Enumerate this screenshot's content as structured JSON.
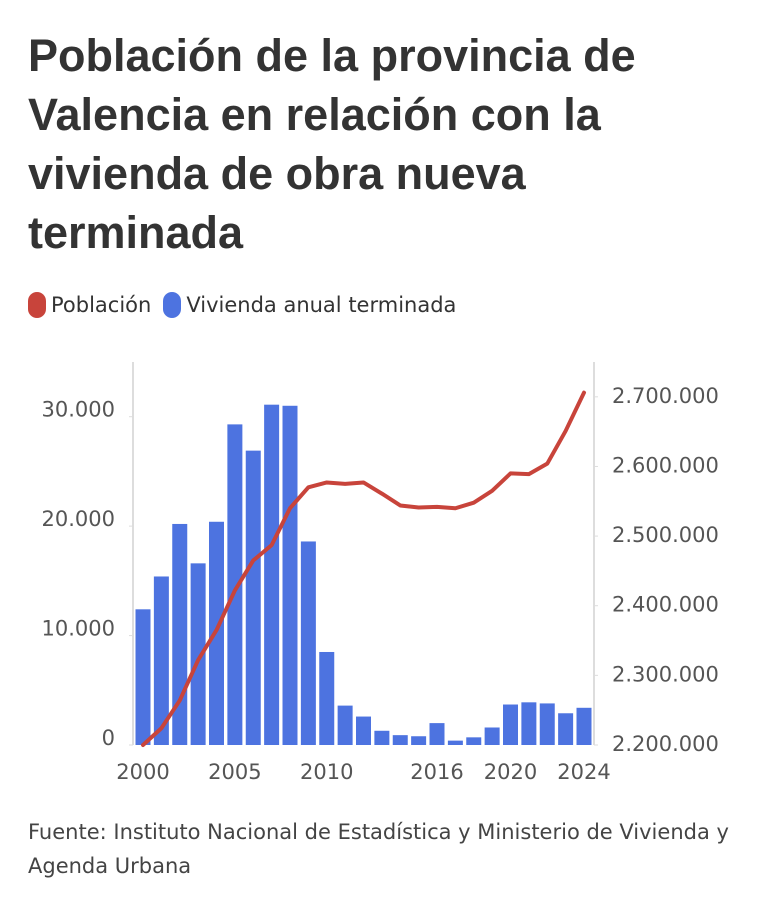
{
  "chart_data": {
    "type": "combo",
    "title": "Población de la provincia de Valencia en relación con la vivienda de obra nueva terminada",
    "source": "Fuente: Instituto Nacional de Estadística y Ministerio de Vivienda y Agenda Urbana",
    "categories": [
      "2000",
      null,
      null,
      null,
      null,
      "2005",
      null,
      null,
      null,
      null,
      "2010",
      null,
      null,
      null,
      null,
      null,
      "2016",
      null,
      null,
      null,
      "2020",
      null,
      null,
      null,
      "2024"
    ],
    "series": [
      {
        "name": "Población",
        "type": "line",
        "axis": "y2",
        "color": "#c8443b",
        "values": [
          2200000,
          2224000,
          2264000,
          2322000,
          2365000,
          2422000,
          2465000,
          2487000,
          2540000,
          2570000,
          2577000,
          2575000,
          2577000,
          2561000,
          2544000,
          2541000,
          2542000,
          2540000,
          2548000,
          2565000,
          2590000,
          2589000,
          2604000,
          2651000,
          2706000
        ]
      },
      {
        "name": "Vivienda anual terminada",
        "type": "bar",
        "axis": "y",
        "color": "#4d73e0",
        "values": [
          12400,
          15400,
          20200,
          16600,
          20400,
          29300,
          26900,
          31100,
          31000,
          18600,
          8500,
          3600,
          2600,
          1300,
          900,
          800,
          2000,
          400,
          700,
          1600,
          3700,
          3900,
          3800,
          2900,
          3400
        ]
      }
    ],
    "ylim": [
      0,
      35000
    ],
    "yticks": [
      0,
      {
        "value": 10000,
        "label": "10.000"
      },
      {
        "value": 20000,
        "label": "20.000"
      },
      {
        "value": 30000,
        "label": "30.000"
      }
    ],
    "y2lim": [
      2200000,
      2750000
    ],
    "y2ticks": [
      {
        "value": 2200000,
        "label": "2.200.000"
      },
      {
        "value": 2300000,
        "label": "2.300.000"
      },
      {
        "value": 2400000,
        "label": "2.400.000"
      },
      {
        "value": 2500000,
        "label": "2.500.000"
      },
      {
        "value": 2600000,
        "label": "2.600.000"
      },
      {
        "value": 2700000,
        "label": "2.700.000"
      }
    ],
    "grid": false
  }
}
